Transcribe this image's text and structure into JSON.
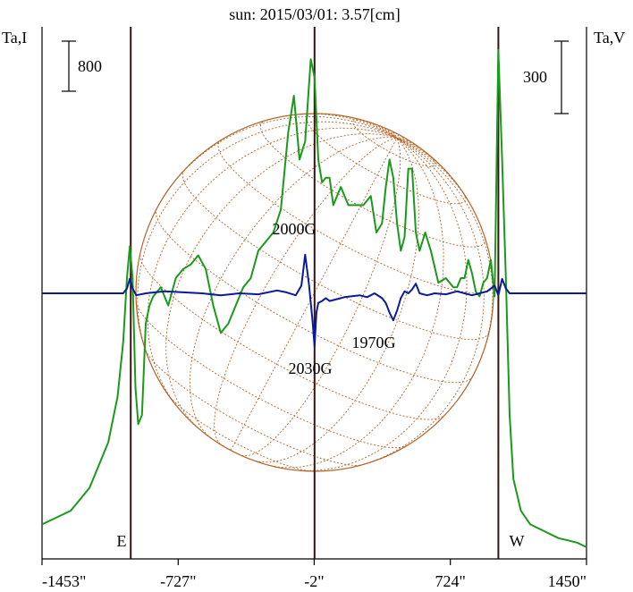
{
  "chart_data": {
    "type": "line",
    "title": "sun: 2015/03/01: 3.57[cm]",
    "left_axis_label": "Ta,I",
    "right_axis_label": "Ta,V",
    "left_scale_bar": "800",
    "right_scale_bar": "300",
    "x_ticks": [
      "-1453\"",
      "-727\"",
      "-2\"",
      "724\"",
      "1450\""
    ],
    "x_tick_values": [
      -1453,
      -727,
      -2,
      724,
      1450
    ],
    "xlim": [
      -1453,
      1450
    ],
    "limb_labels": {
      "east": "E",
      "west": "W"
    },
    "limb_positions": [
      -980,
      980
    ],
    "center_position": 0,
    "colors": {
      "intensity": "#1a9a1a",
      "polarization": "#0a1a9a",
      "grid": "#b5642a",
      "markers": "#3a1410"
    },
    "annotations": [
      {
        "text": "2000G",
        "x": -2,
        "anchor": "above"
      },
      {
        "text": "2030G",
        "x": -2,
        "anchor": "below"
      },
      {
        "text": "1970G",
        "x": 440,
        "anchor": "below"
      }
    ],
    "series": [
      {
        "key": "intensity",
        "x": [
          -1453,
          -1300,
          -1200,
          -1100,
          -1050,
          -1020,
          -1000,
          -985,
          -970,
          -955,
          -940,
          -920,
          -900,
          -880,
          -860,
          -820,
          -780,
          -740,
          -700,
          -660,
          -620,
          -580,
          -540,
          -500,
          -460,
          -420,
          -380,
          -340,
          -300,
          -260,
          -220,
          -180,
          -140,
          -110,
          -80,
          -50,
          -20,
          0,
          20,
          40,
          60,
          80,
          100,
          140,
          180,
          220,
          260,
          300,
          330,
          360,
          380,
          400,
          420,
          440,
          460,
          480,
          500,
          520,
          540,
          560,
          590,
          620,
          660,
          700,
          740,
          760,
          780,
          800,
          820,
          840,
          860,
          880,
          900,
          920,
          940,
          960,
          980,
          1000,
          1020,
          1040,
          1060,
          1100,
          1150,
          1200,
          1300,
          1400,
          1450
        ],
        "y": [
          30,
          45,
          70,
          120,
          170,
          230,
          300,
          335,
          300,
          180,
          140,
          150,
          250,
          270,
          280,
          290,
          270,
          300,
          310,
          315,
          325,
          310,
          270,
          240,
          250,
          270,
          290,
          300,
          330,
          340,
          350,
          375,
          460,
          500,
          430,
          450,
          540,
          520,
          430,
          405,
          410,
          410,
          380,
          400,
          380,
          380,
          380,
          390,
          350,
          360,
          400,
          430,
          410,
          360,
          330,
          345,
          420,
          420,
          350,
          330,
          350,
          330,
          295,
          300,
          290,
          290,
          300,
          300,
          320,
          305,
          285,
          280,
          295,
          300,
          320,
          280,
          550,
          430,
          300,
          150,
          80,
          45,
          30,
          25,
          15,
          10,
          5
        ]
      },
      {
        "key": "polarization",
        "x": [
          -1453,
          -1200,
          -1020,
          -1000,
          -985,
          -970,
          -950,
          -900,
          -800,
          -700,
          -600,
          -500,
          -400,
          -300,
          -200,
          -150,
          -100,
          -70,
          -50,
          -30,
          -10,
          0,
          10,
          20,
          40,
          60,
          80,
          120,
          160,
          200,
          240,
          280,
          320,
          360,
          380,
          400,
          420,
          440,
          460,
          480,
          500,
          520,
          540,
          560,
          600,
          640,
          700,
          760,
          800,
          840,
          880,
          920,
          960,
          980,
          1000,
          1020,
          1040,
          1100,
          1200,
          1300,
          1450
        ],
        "y": [
          0,
          0,
          0,
          5,
          15,
          5,
          -2,
          0,
          2,
          1,
          0,
          -2,
          0,
          -1,
          3,
          1,
          -2,
          8,
          40,
          10,
          -30,
          -55,
          -20,
          -10,
          -8,
          -5,
          -8,
          -6,
          -4,
          -3,
          -2,
          -4,
          0,
          -5,
          -10,
          -20,
          -28,
          -18,
          -5,
          2,
          0,
          4,
          10,
          0,
          -2,
          0,
          -1,
          2,
          0,
          -2,
          0,
          2,
          8,
          -2,
          15,
          5,
          0,
          0,
          0,
          0,
          0
        ]
      }
    ]
  }
}
